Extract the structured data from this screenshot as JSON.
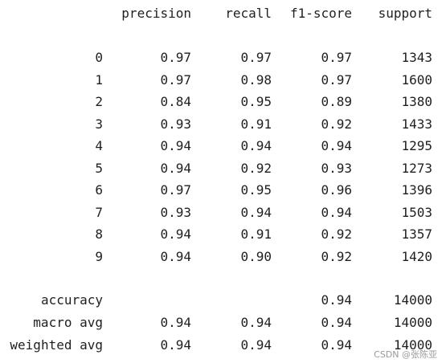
{
  "header": {
    "precision": "precision",
    "recall": "recall",
    "f1": "f1-score",
    "support": "support"
  },
  "classes": [
    {
      "label": "0",
      "precision": "0.97",
      "recall": "0.97",
      "f1": "0.97",
      "support": "1343"
    },
    {
      "label": "1",
      "precision": "0.97",
      "recall": "0.98",
      "f1": "0.97",
      "support": "1600"
    },
    {
      "label": "2",
      "precision": "0.84",
      "recall": "0.95",
      "f1": "0.89",
      "support": "1380"
    },
    {
      "label": "3",
      "precision": "0.93",
      "recall": "0.91",
      "f1": "0.92",
      "support": "1433"
    },
    {
      "label": "4",
      "precision": "0.94",
      "recall": "0.94",
      "f1": "0.94",
      "support": "1295"
    },
    {
      "label": "5",
      "precision": "0.94",
      "recall": "0.92",
      "f1": "0.93",
      "support": "1273"
    },
    {
      "label": "6",
      "precision": "0.97",
      "recall": "0.95",
      "f1": "0.96",
      "support": "1396"
    },
    {
      "label": "7",
      "precision": "0.93",
      "recall": "0.94",
      "f1": "0.94",
      "support": "1503"
    },
    {
      "label": "8",
      "precision": "0.94",
      "recall": "0.91",
      "f1": "0.92",
      "support": "1357"
    },
    {
      "label": "9",
      "precision": "0.94",
      "recall": "0.90",
      "f1": "0.92",
      "support": "1420"
    }
  ],
  "summary": [
    {
      "label": "accuracy",
      "precision": "",
      "recall": "",
      "f1": "0.94",
      "support": "14000"
    },
    {
      "label": "macro avg",
      "precision": "0.94",
      "recall": "0.94",
      "f1": "0.94",
      "support": "14000"
    },
    {
      "label": "weighted avg",
      "precision": "0.94",
      "recall": "0.94",
      "f1": "0.94",
      "support": "14000"
    }
  ],
  "watermark": "CSDN @张陈亚"
}
